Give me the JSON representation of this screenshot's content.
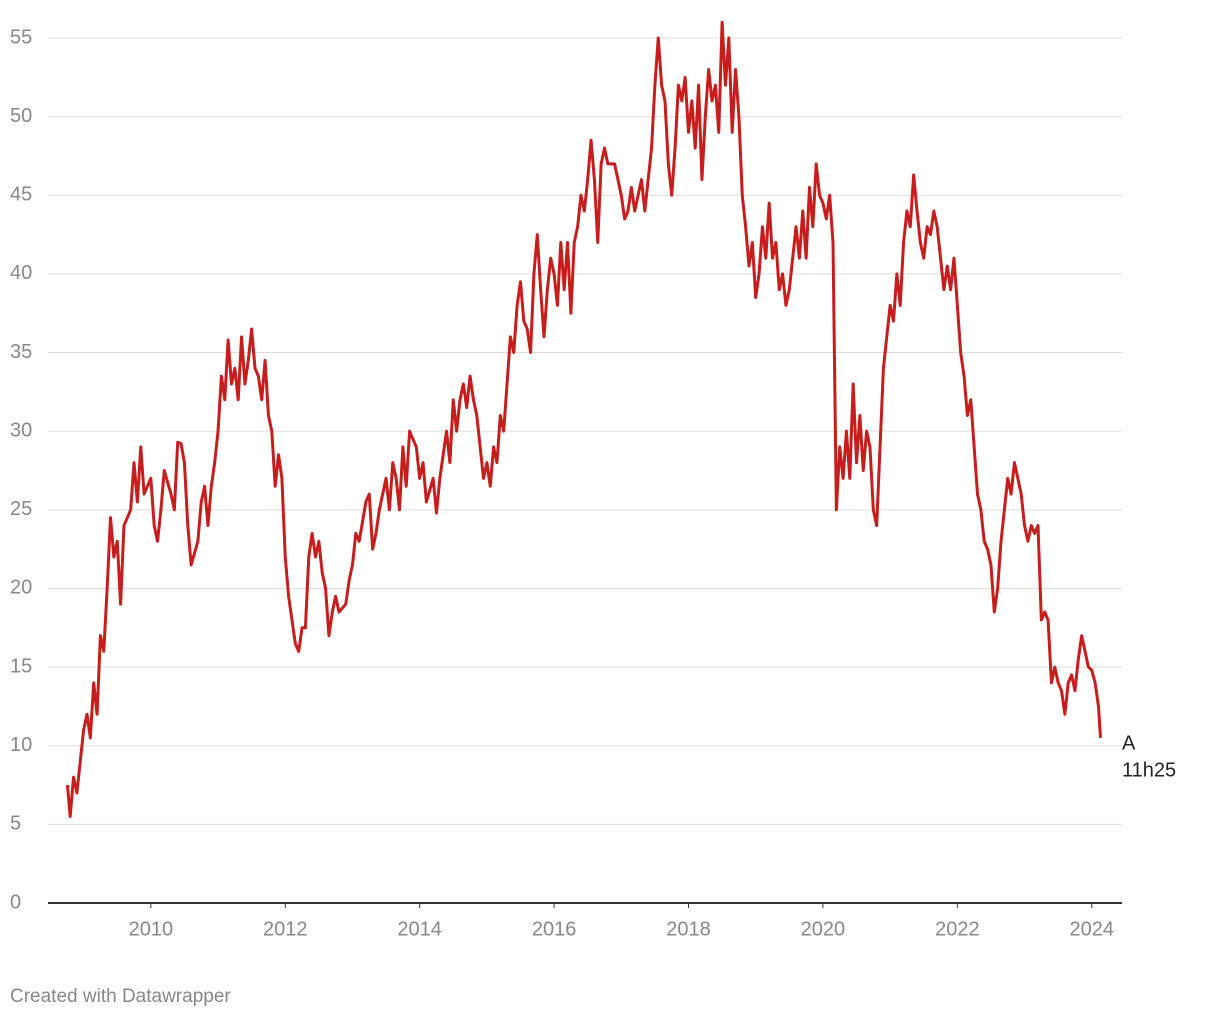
{
  "chart_data": {
    "type": "line",
    "x": [
      2008.76,
      2008.8,
      2008.85,
      2008.9,
      2009.0,
      2009.05,
      2009.1,
      2009.15,
      2009.2,
      2009.25,
      2009.3,
      2009.35,
      2009.4,
      2009.45,
      2009.5,
      2009.55,
      2009.6,
      2009.7,
      2009.75,
      2009.8,
      2009.85,
      2009.9,
      2010.0,
      2010.05,
      2010.1,
      2010.15,
      2010.2,
      2010.3,
      2010.35,
      2010.4,
      2010.45,
      2010.5,
      2010.55,
      2010.6,
      2010.7,
      2010.75,
      2010.8,
      2010.85,
      2010.9,
      2010.95,
      2011.0,
      2011.05,
      2011.1,
      2011.15,
      2011.2,
      2011.25,
      2011.3,
      2011.35,
      2011.4,
      2011.45,
      2011.5,
      2011.55,
      2011.6,
      2011.65,
      2011.7,
      2011.75,
      2011.8,
      2011.85,
      2011.9,
      2011.95,
      2012.0,
      2012.05,
      2012.1,
      2012.15,
      2012.2,
      2012.25,
      2012.3,
      2012.35,
      2012.4,
      2012.45,
      2012.5,
      2012.55,
      2012.6,
      2012.65,
      2012.7,
      2012.75,
      2012.8,
      2012.9,
      2012.95,
      2013.0,
      2013.05,
      2013.1,
      2013.2,
      2013.25,
      2013.3,
      2013.35,
      2013.4,
      2013.5,
      2013.55,
      2013.6,
      2013.65,
      2013.7,
      2013.75,
      2013.8,
      2013.85,
      2013.95,
      2014.0,
      2014.05,
      2014.1,
      2014.2,
      2014.25,
      2014.3,
      2014.35,
      2014.4,
      2014.45,
      2014.5,
      2014.55,
      2014.6,
      2014.65,
      2014.7,
      2014.75,
      2014.8,
      2014.85,
      2014.9,
      2014.95,
      2015.0,
      2015.05,
      2015.1,
      2015.15,
      2015.2,
      2015.25,
      2015.3,
      2015.35,
      2015.4,
      2015.45,
      2015.5,
      2015.55,
      2015.6,
      2015.65,
      2015.7,
      2015.75,
      2015.8,
      2015.85,
      2015.9,
      2015.95,
      2016.0,
      2016.05,
      2016.1,
      2016.15,
      2016.2,
      2016.25,
      2016.3,
      2016.35,
      2016.4,
      2016.45,
      2016.5,
      2016.55,
      2016.6,
      2016.65,
      2016.7,
      2016.75,
      2016.8,
      2016.9,
      2017.0,
      2017.05,
      2017.1,
      2017.15,
      2017.2,
      2017.25,
      2017.3,
      2017.35,
      2017.4,
      2017.45,
      2017.5,
      2017.55,
      2017.6,
      2017.65,
      2017.7,
      2017.75,
      2017.8,
      2017.85,
      2017.9,
      2017.95,
      2018.0,
      2018.05,
      2018.1,
      2018.15,
      2018.2,
      2018.25,
      2018.3,
      2018.35,
      2018.4,
      2018.45,
      2018.5,
      2018.55,
      2018.6,
      2018.65,
      2018.7,
      2018.75,
      2018.8,
      2018.85,
      2018.9,
      2018.95,
      2019.0,
      2019.05,
      2019.1,
      2019.15,
      2019.2,
      2019.25,
      2019.3,
      2019.35,
      2019.4,
      2019.45,
      2019.5,
      2019.6,
      2019.65,
      2019.7,
      2019.75,
      2019.8,
      2019.85,
      2019.9,
      2019.95,
      2020.0,
      2020.05,
      2020.1,
      2020.15,
      2020.2,
      2020.25,
      2020.3,
      2020.35,
      2020.4,
      2020.45,
      2020.5,
      2020.55,
      2020.6,
      2020.65,
      2020.7,
      2020.75,
      2020.8,
      2020.85,
      2020.9,
      2020.95,
      2021.0,
      2021.05,
      2021.1,
      2021.15,
      2021.2,
      2021.25,
      2021.3,
      2021.35,
      2021.4,
      2021.45,
      2021.5,
      2021.55,
      2021.6,
      2021.65,
      2021.7,
      2021.75,
      2021.8,
      2021.85,
      2021.9,
      2021.95,
      2022.0,
      2022.05,
      2022.1,
      2022.15,
      2022.2,
      2022.25,
      2022.3,
      2022.35,
      2022.4,
      2022.45,
      2022.5,
      2022.55,
      2022.6,
      2022.65,
      2022.7,
      2022.75,
      2022.8,
      2022.85,
      2022.9,
      2022.95,
      2023.0,
      2023.05,
      2023.1,
      2023.15,
      2023.2,
      2023.25,
      2023.3,
      2023.35,
      2023.4,
      2023.45,
      2023.5,
      2023.55,
      2023.6,
      2023.65,
      2023.7,
      2023.75,
      2023.8,
      2023.85,
      2023.9,
      2023.95,
      2024.0,
      2024.05,
      2024.1,
      2024.13
    ],
    "series": [
      {
        "color": "#c71e1d",
        "values": [
          7.5,
          5.5,
          8,
          7,
          11,
          12,
          10.5,
          14,
          12,
          17,
          16,
          20,
          24.5,
          22,
          23,
          19,
          24,
          25,
          28,
          25.5,
          29,
          26,
          27,
          24,
          23,
          25,
          27.5,
          26,
          25,
          29.3,
          29.2,
          28,
          24,
          21.5,
          23,
          25.5,
          26.5,
          24,
          26.5,
          28,
          30,
          33.5,
          32,
          35.8,
          33,
          34,
          32,
          36,
          33,
          34.5,
          36.5,
          34,
          33.5,
          32,
          34.5,
          31,
          30,
          26.5,
          28.5,
          27,
          22,
          19.5,
          18,
          16.5,
          16,
          17.5,
          17.5,
          22,
          23.5,
          22,
          23,
          21,
          20,
          17,
          18.5,
          19.5,
          18.5,
          19,
          20.5,
          21.5,
          23.5,
          23,
          25.5,
          26,
          22.5,
          23.5,
          25,
          27,
          25,
          28,
          27,
          25,
          29,
          26.5,
          30,
          29,
          27,
          28,
          25.5,
          27,
          24.8,
          27,
          28.5,
          30,
          28,
          32,
          30,
          32,
          33,
          31.5,
          33.5,
          32,
          31,
          29,
          27,
          28,
          26.5,
          29,
          28,
          31,
          30,
          33,
          36,
          35,
          38,
          39.5,
          37,
          36.5,
          35,
          40,
          42.5,
          39,
          36,
          39,
          41,
          40,
          38,
          42,
          39,
          42,
          37.5,
          42,
          43,
          45,
          44,
          46,
          48.5,
          46,
          42,
          47,
          48,
          47,
          47,
          45,
          43.5,
          44,
          45.5,
          44,
          45,
          46,
          44,
          46,
          48,
          52,
          55,
          52,
          51,
          47,
          45,
          48,
          52,
          51,
          52.5,
          49,
          51,
          48,
          52,
          46,
          50,
          53,
          51,
          52,
          49,
          56,
          52,
          55,
          49,
          53,
          50,
          45,
          43,
          40.5,
          42,
          38.5,
          40,
          43,
          41,
          44.5,
          41,
          42,
          39,
          40,
          38,
          39,
          43,
          41,
          44,
          41,
          45.5,
          43,
          47,
          45,
          44.5,
          43.5,
          45,
          42,
          25,
          29,
          27,
          30,
          27,
          33,
          28,
          31,
          27.5,
          30,
          29,
          25,
          24,
          29,
          34,
          36,
          38,
          37,
          40,
          38,
          42,
          44,
          43,
          46.3,
          44,
          42,
          41,
          43,
          42.5,
          44,
          43,
          41,
          39,
          40.5,
          39,
          41,
          38,
          35,
          33.5,
          31,
          32,
          29,
          26,
          25,
          23,
          22.5,
          21.5,
          18.5,
          20,
          23,
          25,
          27,
          26,
          28,
          27,
          26,
          24,
          23,
          24,
          23.5,
          24,
          18,
          18.5,
          18,
          14,
          15,
          14,
          13.5,
          12,
          14,
          14.5,
          13.5,
          15.5,
          17,
          16,
          15,
          14.8,
          14,
          12.5,
          10.5
        ]
      }
    ],
    "xlim": [
      2008.47,
      2024.45
    ],
    "xticks": [
      2010,
      2012,
      2014,
      2016,
      2018,
      2020,
      2022,
      2024
    ],
    "ylim": [
      0,
      55
    ],
    "yticks": [
      0,
      5,
      10,
      15,
      20,
      25,
      30,
      35,
      40,
      45,
      50,
      55
    ],
    "grid": true,
    "annotation": [
      "A",
      "11h25"
    ]
  },
  "footer": "Created with Datawrapper"
}
